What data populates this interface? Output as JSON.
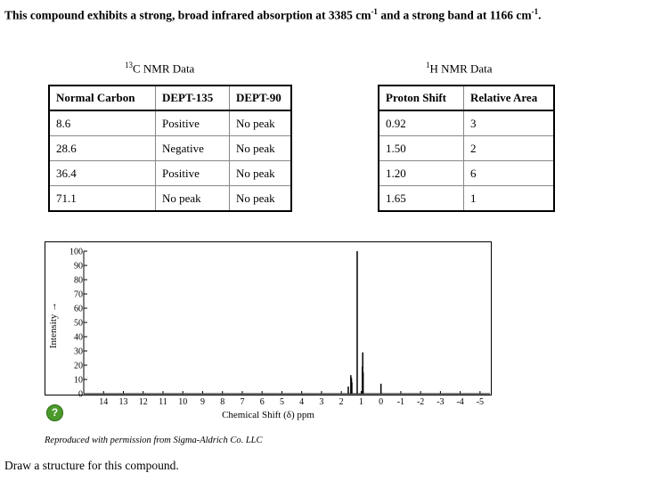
{
  "intro": {
    "part1": "This compound exhibits a strong, broad infrared absorption at 3385 cm",
    "sup1": "-1",
    "part2": " and a strong band at 1166 cm",
    "sup2": "-1",
    "part3": "."
  },
  "carbon": {
    "caption_sup": "13",
    "caption": "C NMR Data",
    "headers": [
      "Normal Carbon",
      "DEPT-135",
      "DEPT-90"
    ],
    "rows": [
      [
        "8.6",
        "Positive",
        "No peak"
      ],
      [
        "28.6",
        "Negative",
        "No peak"
      ],
      [
        "36.4",
        "Positive",
        "No peak"
      ],
      [
        "71.1",
        "No peak",
        "No peak"
      ]
    ]
  },
  "proton": {
    "caption_sup": "1",
    "caption": "H NMR Data",
    "headers": [
      "Proton Shift",
      "Relative Area"
    ],
    "rows": [
      [
        "0.92",
        "3"
      ],
      [
        "1.50",
        "2"
      ],
      [
        "1.20",
        "6"
      ],
      [
        "1.65",
        "1"
      ]
    ]
  },
  "chart_data": {
    "type": "line",
    "title": "",
    "xlabel": "Chemical Shift (δ) ppm",
    "ylabel": "Intensity →",
    "xlim": [
      15,
      -5.5
    ],
    "ylim": [
      0,
      100
    ],
    "x_ticks": [
      14,
      13,
      12,
      11,
      10,
      9,
      8,
      7,
      6,
      5,
      4,
      3,
      2,
      1,
      0,
      -1,
      -2,
      -3,
      -4,
      -5
    ],
    "y_ticks": [
      0,
      10,
      20,
      30,
      40,
      50,
      60,
      70,
      80,
      90,
      100
    ],
    "grid": false,
    "peaks": [
      {
        "x": 1.65,
        "y": 5
      },
      {
        "x": 1.52,
        "y": 13
      },
      {
        "x": 1.49,
        "y": 11
      },
      {
        "x": 1.47,
        "y": 8
      },
      {
        "x": 1.2,
        "y": 100
      },
      {
        "x": 0.94,
        "y": 19
      },
      {
        "x": 0.92,
        "y": 29
      },
      {
        "x": 0.9,
        "y": 15
      },
      {
        "x": 0.0,
        "y": 7
      }
    ]
  },
  "help_icon": {
    "glyph": "?",
    "name": "help-icon"
  },
  "credit": "Reproduced with permission from Sigma-Aldrich Co. LLC",
  "prompt": "Draw a structure for this compound."
}
